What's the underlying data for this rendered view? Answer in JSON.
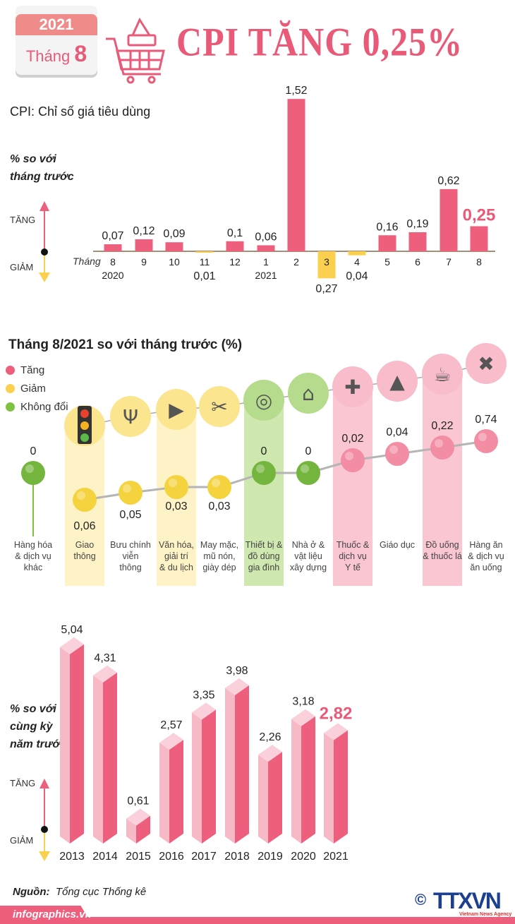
{
  "header": {
    "calendar_year": "2021",
    "calendar_month_label": "Tháng",
    "calendar_month": "8",
    "title": "CPI TĂNG 0,25%"
  },
  "colors": {
    "increase": "#ee5f7e",
    "decrease": "#fcd04f",
    "unchanged": "#7fc241",
    "title": "#e85a78",
    "bar_light": "#f8b9c6"
  },
  "chart_data": [
    {
      "type": "bar",
      "subtitle": "CPI: Chỉ số giá tiêu dùng",
      "ylabel": "% so với\ntháng trước",
      "up_label": "TĂNG",
      "down_label": "GIẢM",
      "month_prefix": "Tháng",
      "categories": [
        "8",
        "9",
        "10",
        "11",
        "12",
        "1",
        "2",
        "3",
        "4",
        "5",
        "6",
        "7",
        "8"
      ],
      "year_labels": [
        "2020",
        "",
        "",
        "",
        "",
        "2021",
        "",
        "",
        "",
        "",
        "",
        "",
        ""
      ],
      "values": [
        0.07,
        0.12,
        0.09,
        -0.01,
        0.1,
        0.06,
        1.52,
        -0.27,
        -0.04,
        0.16,
        0.19,
        0.62,
        0.25
      ],
      "labels": [
        "0,07",
        "0,12",
        "0,09",
        "0,01",
        "0,1",
        "0,06",
        "1,52",
        "0,27",
        "0,04",
        "0,16",
        "0,19",
        "0,62",
        "0,25"
      ],
      "highlight_last": true
    },
    {
      "type": "scatter",
      "title": "Tháng 8/2021 so với tháng trước (%)",
      "legend": [
        {
          "label": "Tăng",
          "status": "increase"
        },
        {
          "label": "Giảm",
          "status": "decrease"
        },
        {
          "label": "Không đổi",
          "status": "unchanged"
        }
      ],
      "categories": [
        "Hàng hóa\n& dịch vụ\nkhác",
        "Giao\nthông",
        "Bưu chính\nviễn\nthông",
        "Văn hóa,\ngiải trí\n& du lịch",
        "May mặc,\nmũ nón,\ngiày dép",
        "Thiết bị &\nđồ dùng\ngia đình",
        "Nhà ở &\nvật liệu\nxây dựng",
        "Thuốc &\ndịch vụ\nY tế",
        "Giáo dục",
        "Đồ uống\n& thuốc lá",
        "Hàng ăn\n& dịch vụ\năn uống"
      ],
      "values": [
        0,
        -0.06,
        -0.05,
        -0.03,
        -0.03,
        0,
        0,
        0.02,
        0.04,
        0.22,
        0.74
      ],
      "labels": [
        "0",
        "0,06",
        "0,05",
        "0,03",
        "0,03",
        "0",
        "0",
        "0,02",
        "0,04",
        "0,22",
        "0,74"
      ],
      "status": [
        "unchanged",
        "decrease",
        "decrease",
        "decrease",
        "decrease",
        "unchanged",
        "unchanged",
        "increase",
        "increase",
        "increase",
        "increase"
      ],
      "icons": [
        "",
        "traffic-light-icon",
        "antenna-tower-icon",
        "film-clapper-icon",
        "clothes-shoes-icon",
        "washing-machine-icon",
        "house-icon",
        "pills-icon",
        "graduation-cap-icon",
        "drink-cigarettes-icon",
        "food-plate-icon"
      ]
    },
    {
      "type": "bar",
      "ylabel": "% so với\ncùng kỳ\nnăm trước",
      "up_label": "TĂNG",
      "down_label": "GIẢM",
      "categories": [
        "2013",
        "2014",
        "2015",
        "2016",
        "2017",
        "2018",
        "2019",
        "2020",
        "2021"
      ],
      "values": [
        5.04,
        4.31,
        0.61,
        2.57,
        3.35,
        3.98,
        2.26,
        3.18,
        2.82
      ],
      "labels": [
        "5,04",
        "4,31",
        "0,61",
        "2,57",
        "3,35",
        "3,98",
        "2,26",
        "3,18",
        "2,82"
      ],
      "style": "3d",
      "highlight_last": true
    }
  ],
  "footer": {
    "source_label": "Nguồn:",
    "source": "Tổng cục Thống kê",
    "site": "infographics.vn",
    "logo": "TTXVN",
    "logo_sub": "Vietnam News Agency",
    "copyright": "©"
  }
}
